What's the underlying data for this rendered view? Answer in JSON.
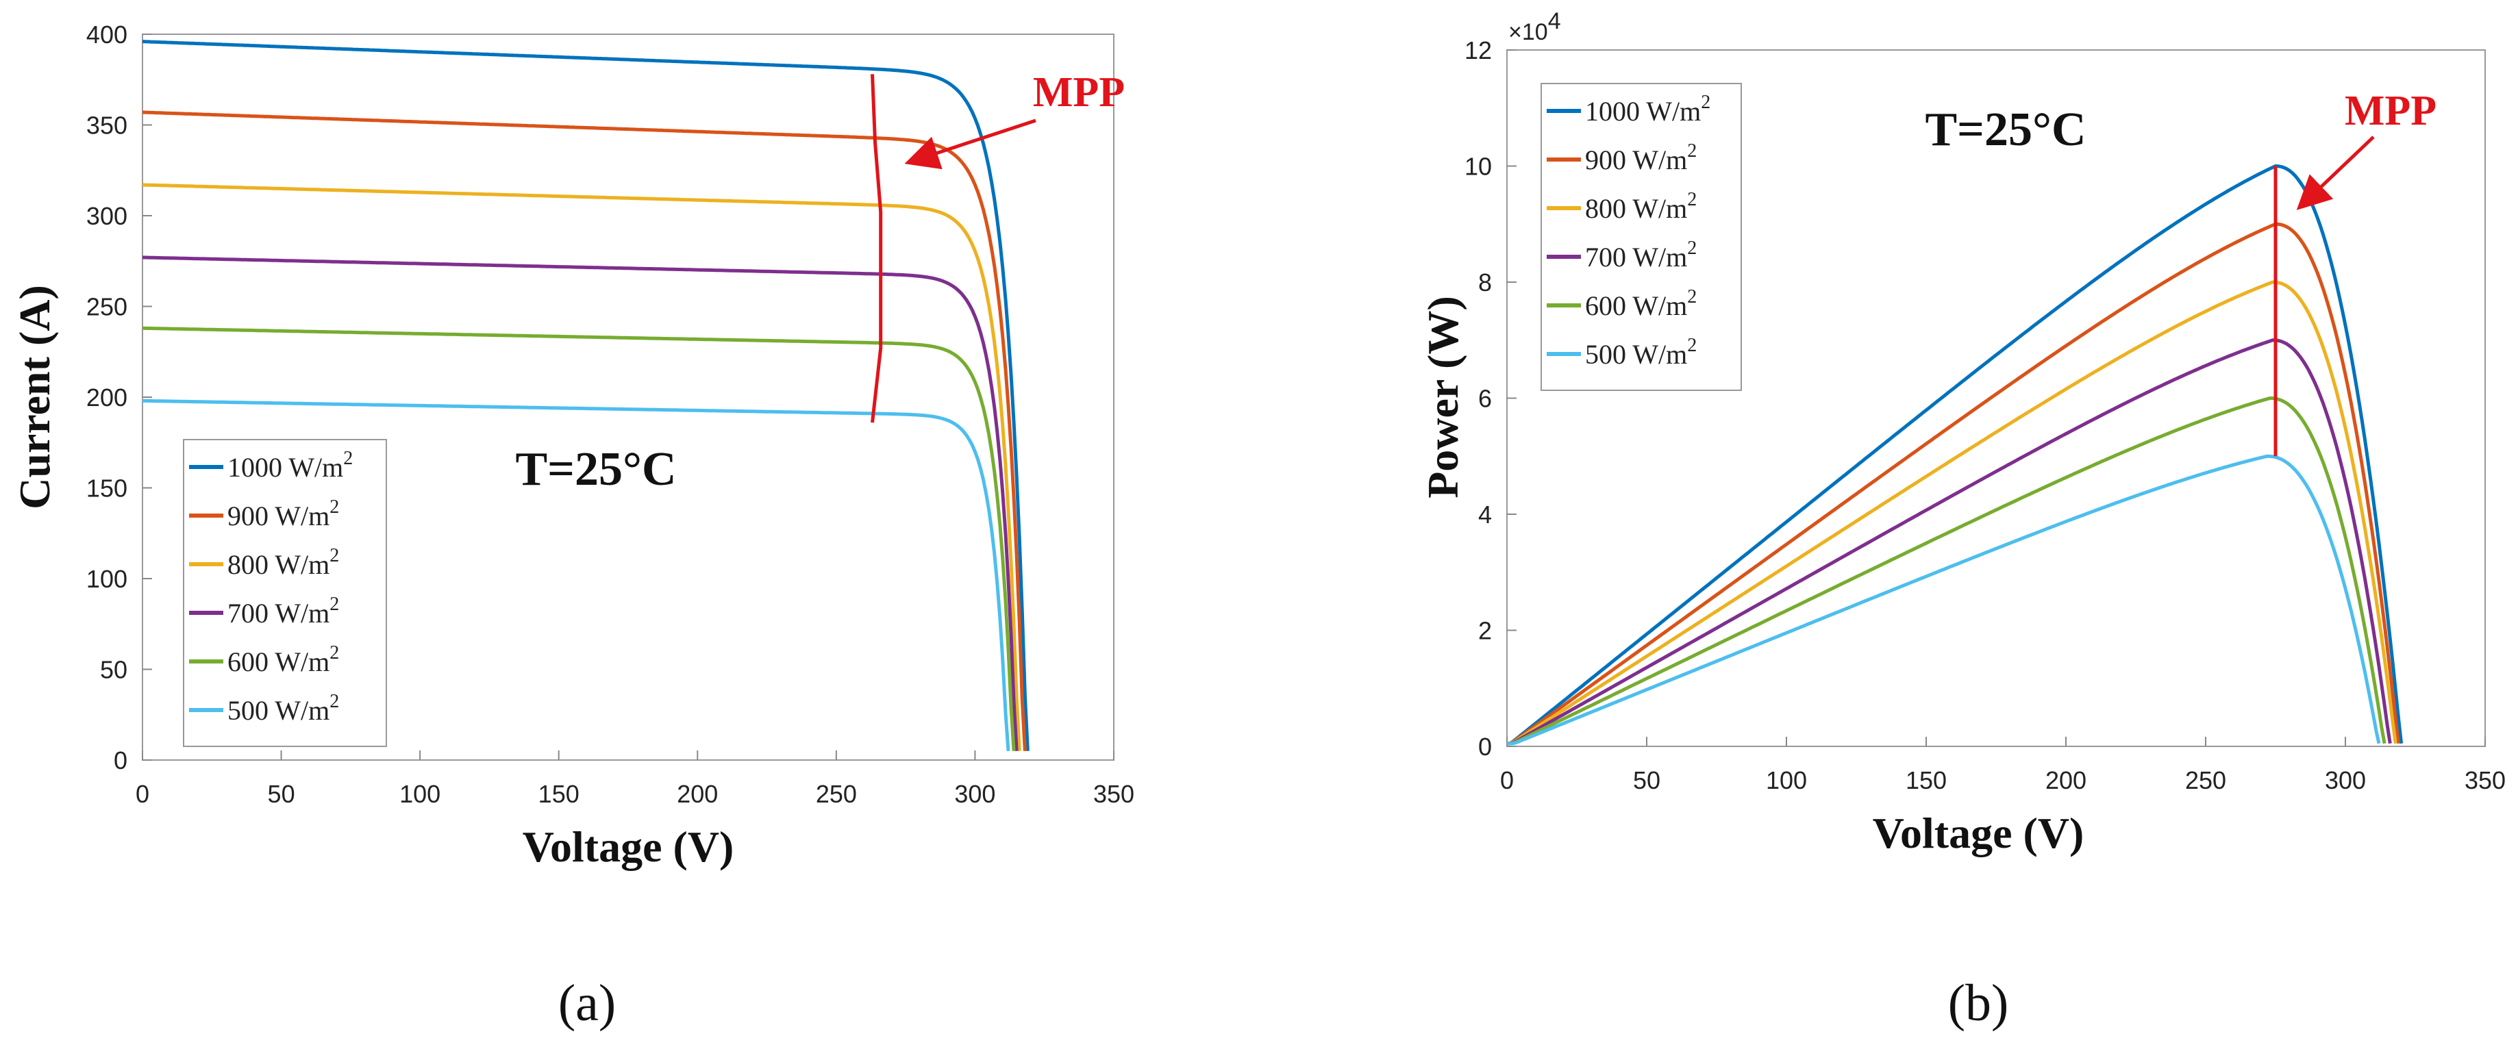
{
  "colors": {
    "series": [
      "#0072BD",
      "#D95319",
      "#EDB120",
      "#7E2F8E",
      "#77AC30",
      "#4DBEEE"
    ],
    "mpp": "#e0141a",
    "axis": "#555555"
  },
  "chart_data": [
    {
      "id": "a",
      "type": "line",
      "panel_label": "(a)",
      "title": "",
      "xlabel": "Voltage (V)",
      "ylabel": "Current (A)",
      "xlim": [
        0,
        350
      ],
      "ylim": [
        0,
        400
      ],
      "xticks": [
        "0",
        "50",
        "100",
        "150",
        "200",
        "250",
        "300",
        "350"
      ],
      "yticks": [
        "0",
        "50",
        "100",
        "150",
        "200",
        "250",
        "300",
        "350",
        "400"
      ],
      "annotation": "T=25°C",
      "mpp_label": "MPP",
      "legend_position": "bottom-left",
      "series": [
        {
          "name": "1000 W/m²",
          "label_text": "1000 W/m",
          "sup": "2",
          "isc": 396,
          "isc_end": 381,
          "voc": 319,
          "mpp_v": 263,
          "mpp_i": 378
        },
        {
          "name": "900 W/m²",
          "label_text": "900 W/m",
          "sup": "2",
          "isc": 357,
          "isc_end": 343,
          "voc": 318,
          "mpp_v": 264,
          "mpp_i": 340
        },
        {
          "name": "800 W/m²",
          "label_text": "800 W/m",
          "sup": "2",
          "isc": 317,
          "isc_end": 306,
          "voc": 316,
          "mpp_v": 266,
          "mpp_i": 302
        },
        {
          "name": "700 W/m²",
          "label_text": "700 W/m",
          "sup": "2",
          "isc": 277,
          "isc_end": 268,
          "voc": 315,
          "mpp_v": 266,
          "mpp_i": 265
        },
        {
          "name": "600 W/m²",
          "label_text": "600 W/m",
          "sup": "2",
          "isc": 238,
          "isc_end": 230,
          "voc": 314,
          "mpp_v": 266,
          "mpp_i": 227
        },
        {
          "name": "500 W/m²",
          "label_text": "500 W/m",
          "sup": "2",
          "isc": 198,
          "isc_end": 191,
          "voc": 312,
          "mpp_v": 263,
          "mpp_i": 186
        }
      ]
    },
    {
      "id": "b",
      "type": "line",
      "panel_label": "(b)",
      "title": "",
      "xlabel": "Voltage (V)",
      "ylabel": "Power (W)",
      "xlim": [
        0,
        350
      ],
      "ylim": [
        0,
        12
      ],
      "y_multiplier": "×10",
      "y_multiplier_exp": "4",
      "xticks": [
        "0",
        "50",
        "100",
        "150",
        "200",
        "250",
        "300",
        "350"
      ],
      "yticks": [
        "0",
        "2",
        "4",
        "6",
        "8",
        "10",
        "12"
      ],
      "annotation": "T=25°C",
      "mpp_label": "MPP",
      "legend_position": "top-left",
      "mpp_voltage": 275,
      "series": [
        {
          "name": "1000 W/m²",
          "label_text": "1000 W/m",
          "sup": "2",
          "pmax": 10.0,
          "vmp": 275,
          "voc": 320
        },
        {
          "name": "900 W/m²",
          "label_text": "900 W/m",
          "sup": "2",
          "pmax": 9.0,
          "vmp": 275,
          "voc": 319
        },
        {
          "name": "800 W/m²",
          "label_text": "800 W/m",
          "sup": "2",
          "pmax": 8.0,
          "vmp": 274,
          "voc": 318
        },
        {
          "name": "700 W/m²",
          "label_text": "700 W/m",
          "sup": "2",
          "pmax": 7.0,
          "vmp": 274,
          "voc": 316
        },
        {
          "name": "600 W/m²",
          "label_text": "600 W/m",
          "sup": "2",
          "pmax": 6.0,
          "vmp": 273,
          "voc": 314
        },
        {
          "name": "500 W/m²",
          "label_text": "500 W/m",
          "sup": "2",
          "pmax": 5.0,
          "vmp": 272,
          "voc": 312
        }
      ]
    }
  ]
}
